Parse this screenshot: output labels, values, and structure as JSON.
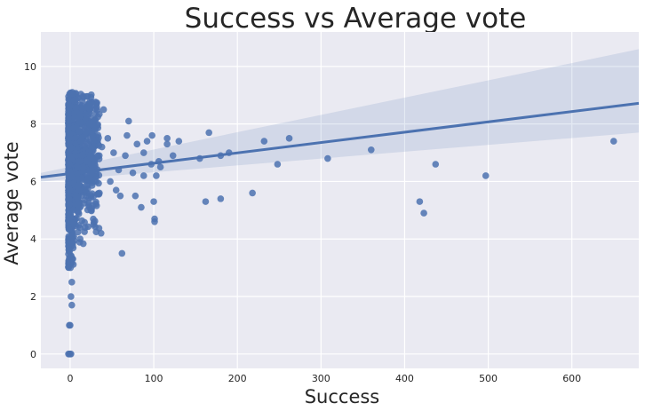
{
  "chart_data": {
    "type": "scatter",
    "title": "Success vs Average vote",
    "xlabel": "Success",
    "ylabel": "Average vote",
    "xlim": [
      -35,
      680
    ],
    "ylim": [
      -0.5,
      11.2
    ],
    "xticks": [
      "0",
      "100",
      "200",
      "300",
      "400",
      "500",
      "600"
    ],
    "yticks": [
      "0",
      "2",
      "4",
      "6",
      "8",
      "10"
    ],
    "grid": true,
    "regression": {
      "x": [
        -35,
        680
      ],
      "y": [
        6.15,
        8.72
      ],
      "ci_upper": [
        6.3,
        10.6
      ],
      "ci_lower": [
        6.0,
        7.7
      ]
    },
    "outliers": [
      [
        650,
        7.4
      ],
      [
        497,
        6.2
      ],
      [
        437,
        6.6
      ],
      [
        423,
        4.9
      ],
      [
        418,
        5.3
      ],
      [
        360,
        7.1
      ],
      [
        308,
        6.8
      ],
      [
        262,
        7.5
      ],
      [
        248,
        6.6
      ],
      [
        232,
        7.4
      ],
      [
        218,
        5.6
      ],
      [
        190,
        7.0
      ],
      [
        180,
        6.9
      ],
      [
        180,
        5.4
      ],
      [
        166,
        7.7
      ],
      [
        162,
        5.3
      ],
      [
        155,
        6.8
      ],
      [
        130,
        7.4
      ],
      [
        123,
        6.9
      ],
      [
        116,
        7.5
      ],
      [
        116,
        7.3
      ],
      [
        108,
        6.5
      ],
      [
        106,
        6.7
      ],
      [
        103,
        6.2
      ],
      [
        101,
        4.6
      ],
      [
        101,
        4.7
      ],
      [
        100,
        5.3
      ],
      [
        98,
        7.6
      ],
      [
        97,
        6.6
      ],
      [
        92,
        7.4
      ],
      [
        88,
        6.2
      ],
      [
        88,
        7.0
      ],
      [
        85,
        5.1
      ],
      [
        80,
        7.3
      ],
      [
        78,
        5.5
      ],
      [
        75,
        6.3
      ],
      [
        70,
        8.1
      ],
      [
        68,
        7.6
      ],
      [
        66,
        6.9
      ],
      [
        62,
        3.5
      ],
      [
        60,
        5.5
      ],
      [
        58,
        6.4
      ],
      [
        55,
        5.7
      ],
      [
        52,
        7.0
      ],
      [
        48,
        6.0
      ],
      [
        45,
        7.5
      ],
      [
        40,
        8.5
      ],
      [
        38,
        7.2
      ],
      [
        37,
        4.2
      ],
      [
        35,
        5.6
      ],
      [
        33,
        6.9
      ],
      [
        30,
        7.8
      ],
      [
        28,
        4.5
      ],
      [
        25,
        5.0
      ],
      [
        20,
        8.3
      ],
      [
        18,
        4.4
      ],
      [
        12,
        4.0
      ],
      [
        2,
        1.7
      ],
      [
        2,
        2.5
      ],
      [
        1,
        2.0
      ],
      [
        0,
        1.0
      ],
      [
        -1,
        1.0
      ],
      [
        0,
        0
      ],
      [
        -1,
        0
      ],
      [
        1,
        0
      ],
      [
        -2,
        0
      ]
    ],
    "cluster": {
      "x_range": [
        -2,
        35
      ],
      "y_range": [
        2.8,
        9.1
      ]
    }
  }
}
